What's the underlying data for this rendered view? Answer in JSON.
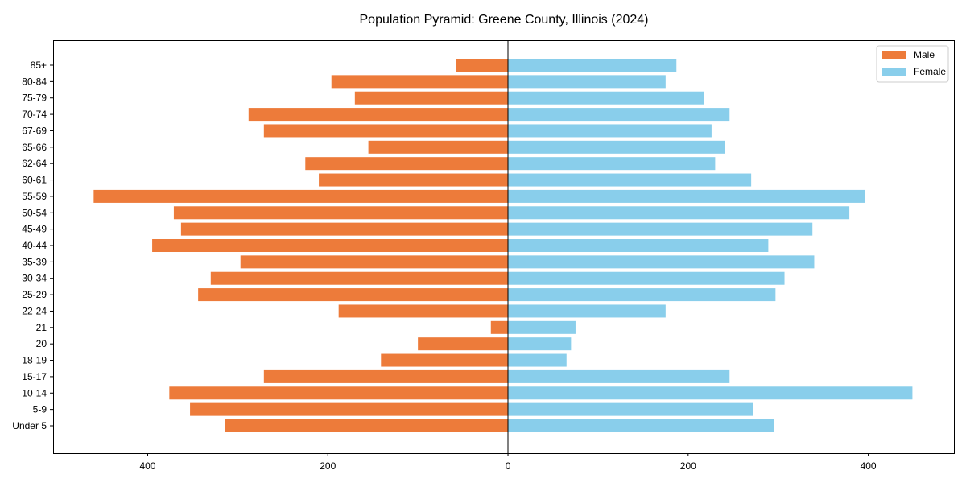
{
  "chart_data": {
    "type": "bar",
    "orientation": "horizontal-pyramid",
    "title": "Population Pyramid: Greene County, Illinois (2024)",
    "xlabel": "",
    "ylabel": "",
    "xlim": [
      -505,
      496
    ],
    "xticks": [
      -400,
      -200,
      0,
      200,
      400
    ],
    "xtick_labels": [
      "400",
      "200",
      "0",
      "200",
      "400"
    ],
    "legend_placement": "top-right",
    "categories": [
      "Under 5",
      "5-9",
      "10-14",
      "15-17",
      "18-19",
      "20",
      "21",
      "22-24",
      "25-29",
      "30-34",
      "35-39",
      "40-44",
      "45-49",
      "50-54",
      "55-59",
      "60-61",
      "62-64",
      "65-66",
      "67-69",
      "70-74",
      "75-79",
      "80-84",
      "85+"
    ],
    "series": [
      {
        "name": "Male",
        "color": "#ed7b3a",
        "values": [
          314,
          353,
          376,
          271,
          141,
          100,
          19,
          188,
          344,
          330,
          297,
          395,
          363,
          371,
          460,
          210,
          225,
          155,
          271,
          288,
          170,
          196,
          58
        ]
      },
      {
        "name": "Female",
        "color": "#89ceeb",
        "values": [
          295,
          272,
          449,
          246,
          65,
          70,
          75,
          175,
          297,
          307,
          340,
          289,
          338,
          379,
          396,
          270,
          230,
          241,
          226,
          246,
          218,
          175,
          187
        ]
      }
    ]
  }
}
